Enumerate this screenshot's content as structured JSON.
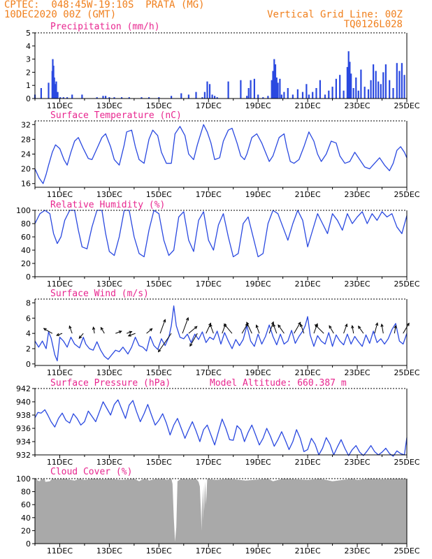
{
  "header": {
    "station": "CPTEC:  048:45W-19:10S  PRATA (MG)",
    "run": "10DEC2020 00Z (GMT)",
    "grid_note": "Vertical Grid Line: 00Z",
    "code": "TQ0126L028"
  },
  "colors": {
    "header": "#f07f1c",
    "title": "#e8268f",
    "line": "#2a49e0",
    "cloud": "#a9a9a9"
  },
  "x_ticks": [
    "11DEC",
    "13DEC",
    "15DEC",
    "17DEC",
    "19DEC",
    "21DEC",
    "23DEC",
    "25DEC"
  ],
  "chart_data": [
    {
      "type": "bar",
      "title": "Precipitation (mm/h)",
      "ylim": [
        0,
        5
      ],
      "yticks": [
        "0",
        "1",
        "2",
        "3",
        "4",
        "5"
      ],
      "x_start_day": 10,
      "x_end_day": 25,
      "x": [
        10.0,
        10.25,
        10.55,
        10.7,
        10.72,
        10.75,
        10.78,
        10.82,
        10.86,
        10.92,
        11.02,
        11.15,
        11.3,
        11.5,
        11.9,
        12.5,
        12.75,
        12.85,
        13.0,
        13.2,
        13.5,
        13.8,
        14.3,
        14.6,
        15.0,
        15.5,
        15.9,
        16.2,
        16.5,
        16.75,
        16.85,
        16.95,
        17.05,
        17.15,
        17.25,
        17.35,
        17.8,
        18.3,
        18.55,
        18.62,
        18.7,
        18.85,
        19.0,
        19.2,
        19.4,
        19.55,
        19.6,
        19.65,
        19.7,
        19.75,
        19.8,
        19.88,
        19.95,
        20.05,
        20.2,
        20.4,
        20.6,
        20.8,
        20.95,
        21.05,
        21.2,
        21.35,
        21.5,
        21.7,
        21.85,
        22.0,
        22.15,
        22.3,
        22.45,
        22.6,
        22.65,
        22.7,
        22.75,
        22.85,
        22.95,
        23.05,
        23.15,
        23.3,
        23.45,
        23.55,
        23.65,
        23.75,
        23.85,
        23.95,
        24.05,
        24.15,
        24.3,
        24.45,
        24.6,
        24.7,
        24.8,
        24.9
      ],
      "values": [
        0.3,
        0.8,
        1.2,
        2.1,
        3.0,
        2.5,
        1.6,
        1.1,
        1.3,
        0.5,
        0.1,
        0.1,
        0.1,
        0.3,
        0.3,
        0.1,
        0.2,
        0.2,
        0.1,
        0.1,
        0.1,
        0.1,
        0.1,
        0.1,
        0.1,
        0.2,
        0.4,
        0.3,
        0.5,
        0.1,
        0.5,
        1.3,
        1.1,
        0.3,
        0.2,
        0.1,
        1.3,
        1.4,
        0.2,
        0.8,
        1.4,
        1.5,
        0.3,
        0.1,
        0.2,
        1.4,
        2.1,
        3.0,
        2.6,
        1.6,
        1.2,
        1.5,
        0.3,
        0.5,
        0.8,
        0.3,
        0.7,
        0.5,
        1.1,
        0.3,
        0.5,
        0.8,
        1.4,
        0.3,
        0.6,
        0.9,
        1.5,
        1.8,
        0.6,
        2.4,
        3.6,
        2.8,
        1.9,
        0.8,
        1.6,
        0.6,
        2.2,
        0.9,
        0.7,
        1.4,
        2.6,
        2.1,
        1.3,
        1.1,
        2.0,
        2.6,
        1.4,
        0.8,
        2.7,
        2.1,
        2.7,
        1.8
      ]
    },
    {
      "type": "line",
      "title": "Surface Temperature (nC)",
      "ylim": [
        15,
        33
      ],
      "yticks": [
        "16",
        "20",
        "24",
        "28",
        "32"
      ],
      "x": [
        10.0,
        10.17,
        10.33,
        10.45,
        10.55,
        10.7,
        10.83,
        11.0,
        11.17,
        11.3,
        11.45,
        11.6,
        11.75,
        11.95,
        12.15,
        12.3,
        12.5,
        12.7,
        12.85,
        13.05,
        13.2,
        13.4,
        13.6,
        13.7,
        13.9,
        14.05,
        14.2,
        14.4,
        14.6,
        14.75,
        14.95,
        15.1,
        15.3,
        15.5,
        15.65,
        15.85,
        16.05,
        16.2,
        16.4,
        16.55,
        16.8,
        16.95,
        17.1,
        17.25,
        17.45,
        17.6,
        17.8,
        17.95,
        18.15,
        18.3,
        18.45,
        18.55,
        18.75,
        18.95,
        19.15,
        19.3,
        19.45,
        19.6,
        19.85,
        20.05,
        20.15,
        20.3,
        20.45,
        20.65,
        20.85,
        21.05,
        21.25,
        21.4,
        21.55,
        21.75,
        21.95,
        22.15,
        22.3,
        22.5,
        22.7,
        22.9,
        23.1,
        23.3,
        23.5,
        23.7,
        23.9,
        24.1,
        24.3,
        24.45,
        24.6,
        24.75,
        24.9,
        25.0
      ],
      "values": [
        20.0,
        17.5,
        16.0,
        18.5,
        21.0,
        24.5,
        26.5,
        25.5,
        22.5,
        21.0,
        24.5,
        27.5,
        28.5,
        25.5,
        22.8,
        22.5,
        25.5,
        28.5,
        29.5,
        26.0,
        22.5,
        21.0,
        26.5,
        30.0,
        30.5,
        26.0,
        22.5,
        21.5,
        28.0,
        30.5,
        29.0,
        24.5,
        21.5,
        21.5,
        29.5,
        31.5,
        29.0,
        24.0,
        22.5,
        26.5,
        32.0,
        30.0,
        27.0,
        22.5,
        23.0,
        27.5,
        30.5,
        31.0,
        27.0,
        23.5,
        22.5,
        24.0,
        28.5,
        29.5,
        27.0,
        24.5,
        22.0,
        23.5,
        28.5,
        29.5,
        26.0,
        22.0,
        21.5,
        22.5,
        26.0,
        30.0,
        27.5,
        24.0,
        22.0,
        24.0,
        27.5,
        27.0,
        23.5,
        21.5,
        22.0,
        24.5,
        22.5,
        20.5,
        20.0,
        21.5,
        23.0,
        21.0,
        19.5,
        21.5,
        25.0,
        26.0,
        24.5,
        23.0
      ]
    },
    {
      "type": "line",
      "title": "Relative Humidity (%)",
      "ylim": [
        0,
        100
      ],
      "yticks": [
        "0",
        "20",
        "40",
        "60",
        "80",
        "100"
      ],
      "x": [
        10.0,
        10.2,
        10.4,
        10.6,
        10.75,
        10.9,
        11.05,
        11.2,
        11.4,
        11.6,
        11.75,
        11.9,
        12.1,
        12.3,
        12.5,
        12.7,
        12.85,
        13.0,
        13.2,
        13.4,
        13.6,
        13.8,
        14.0,
        14.2,
        14.4,
        14.6,
        14.8,
        15.0,
        15.2,
        15.4,
        15.6,
        15.8,
        16.0,
        16.2,
        16.4,
        16.6,
        16.8,
        17.0,
        17.2,
        17.4,
        17.6,
        17.8,
        18.0,
        18.2,
        18.4,
        18.6,
        18.8,
        19.0,
        19.2,
        19.4,
        19.6,
        19.8,
        20.0,
        20.2,
        20.4,
        20.6,
        20.8,
        21.0,
        21.2,
        21.4,
        21.6,
        21.8,
        22.0,
        22.2,
        22.4,
        22.6,
        22.8,
        23.0,
        23.2,
        23.4,
        23.6,
        23.8,
        24.0,
        24.2,
        24.4,
        24.6,
        24.8,
        25.0
      ],
      "values": [
        80,
        95,
        100,
        95,
        65,
        50,
        60,
        85,
        100,
        100,
        70,
        45,
        42,
        75,
        100,
        100,
        65,
        38,
        32,
        60,
        100,
        100,
        60,
        35,
        30,
        70,
        100,
        95,
        55,
        32,
        40,
        90,
        98,
        55,
        38,
        85,
        98,
        55,
        40,
        78,
        95,
        60,
        30,
        35,
        80,
        90,
        60,
        30,
        35,
        80,
        100,
        95,
        75,
        55,
        80,
        100,
        85,
        45,
        70,
        95,
        80,
        65,
        95,
        85,
        70,
        95,
        80,
        90,
        98,
        80,
        95,
        85,
        98,
        90,
        95,
        75,
        65,
        92
      ]
    },
    {
      "type": "line",
      "title": "Surface Wind (m/s)",
      "ylim": [
        -0.2,
        8.5
      ],
      "yticks": [
        "0",
        "2",
        "4",
        "6",
        "8"
      ],
      "x": [
        10.0,
        10.15,
        10.3,
        10.45,
        10.55,
        10.65,
        10.8,
        10.9,
        11.0,
        11.15,
        11.3,
        11.45,
        11.6,
        11.8,
        11.95,
        12.05,
        12.2,
        12.35,
        12.5,
        12.65,
        12.8,
        12.95,
        13.1,
        13.25,
        13.4,
        13.55,
        13.75,
        13.9,
        14.05,
        14.2,
        14.35,
        14.5,
        14.65,
        14.8,
        14.95,
        15.1,
        15.25,
        15.4,
        15.5,
        15.6,
        15.7,
        15.85,
        16.0,
        16.15,
        16.3,
        16.45,
        16.6,
        16.75,
        16.9,
        17.05,
        17.2,
        17.35,
        17.5,
        17.65,
        17.8,
        17.95,
        18.1,
        18.25,
        18.4,
        18.55,
        18.7,
        18.85,
        19.0,
        19.15,
        19.3,
        19.45,
        19.6,
        19.75,
        19.9,
        20.05,
        20.2,
        20.35,
        20.5,
        20.65,
        20.8,
        20.9,
        21.0,
        21.1,
        21.25,
        21.4,
        21.55,
        21.7,
        21.85,
        22.0,
        22.15,
        22.3,
        22.45,
        22.6,
        22.75,
        22.9,
        23.05,
        23.2,
        23.35,
        23.5,
        23.65,
        23.8,
        23.95,
        24.1,
        24.25,
        24.4,
        24.55,
        24.7,
        24.85,
        25.0
      ],
      "values": [
        3.0,
        2.2,
        3.0,
        2.0,
        4.2,
        3.4,
        1.2,
        0.4,
        3.5,
        3.0,
        2.2,
        3.5,
        2.6,
        2.1,
        3.5,
        2.6,
        2.0,
        1.8,
        2.9,
        1.8,
        1.0,
        0.6,
        1.2,
        1.8,
        1.6,
        2.2,
        1.3,
        2.2,
        3.5,
        2.4,
        2.2,
        1.7,
        3.6,
        2.4,
        1.9,
        3.3,
        2.4,
        3.5,
        5.0,
        7.6,
        5.0,
        3.5,
        3.3,
        3.9,
        2.8,
        3.9,
        3.2,
        4.2,
        2.8,
        3.5,
        3.2,
        4.3,
        2.6,
        4.1,
        3.0,
        2.0,
        3.2,
        2.4,
        3.2,
        5.0,
        3.0,
        2.3,
        3.9,
        2.6,
        3.6,
        5.1,
        3.6,
        2.5,
        3.9,
        2.6,
        3.0,
        4.4,
        2.7,
        3.6,
        4.3,
        5.0,
        6.2,
        3.8,
        2.3,
        3.7,
        3.0,
        2.6,
        4.1,
        2.3,
        3.8,
        3.0,
        2.5,
        3.9,
        2.6,
        3.6,
        2.9,
        2.3,
        3.8,
        2.7,
        4.3,
        2.8,
        3.3,
        2.6,
        3.3,
        4.5,
        5.3,
        3.0,
        2.6,
        4.0
      ]
    },
    {
      "type": "line",
      "title": "Surface Pressure (hPa)",
      "annotation": "Model Altitude: 660.387 m",
      "ylim": [
        932,
        942
      ],
      "yticks": [
        "932",
        "934",
        "936",
        "938",
        "940",
        "942"
      ],
      "x": [
        10.0,
        10.12,
        10.25,
        10.4,
        10.52,
        10.65,
        10.8,
        10.95,
        11.1,
        11.25,
        11.4,
        11.55,
        11.7,
        11.85,
        12.0,
        12.15,
        12.3,
        12.45,
        12.6,
        12.75,
        12.9,
        13.05,
        13.2,
        13.35,
        13.5,
        13.65,
        13.8,
        13.95,
        14.1,
        14.25,
        14.4,
        14.55,
        14.7,
        14.85,
        15.0,
        15.15,
        15.3,
        15.45,
        15.6,
        15.75,
        15.9,
        16.05,
        16.2,
        16.35,
        16.5,
        16.65,
        16.8,
        16.95,
        17.1,
        17.25,
        17.4,
        17.55,
        17.7,
        17.85,
        18.0,
        18.15,
        18.3,
        18.45,
        18.6,
        18.75,
        18.9,
        19.05,
        19.2,
        19.35,
        19.5,
        19.65,
        19.8,
        19.95,
        20.1,
        20.25,
        20.4,
        20.55,
        20.7,
        20.85,
        21.0,
        21.15,
        21.3,
        21.45,
        21.6,
        21.75,
        21.9,
        22.05,
        22.2,
        22.35,
        22.5,
        22.65,
        22.8,
        22.95,
        23.1,
        23.25,
        23.4,
        23.55,
        23.7,
        23.85,
        24.0,
        24.15,
        24.3,
        24.45,
        24.6,
        24.75,
        24.9,
        25.0
      ],
      "values": [
        937.6,
        938.4,
        938.3,
        938.8,
        938.0,
        937.0,
        936.2,
        937.5,
        938.3,
        937.2,
        936.8,
        938.2,
        937.5,
        936.5,
        937.0,
        938.6,
        937.8,
        937.0,
        938.5,
        940.0,
        939.0,
        938.0,
        939.6,
        940.3,
        938.9,
        937.5,
        939.5,
        940.2,
        938.5,
        937.0,
        938.2,
        939.6,
        938.0,
        936.5,
        937.2,
        938.2,
        936.8,
        935.0,
        936.5,
        937.5,
        936.0,
        934.5,
        935.8,
        937.0,
        935.6,
        934.0,
        935.8,
        936.5,
        935.0,
        933.5,
        935.5,
        937.4,
        936.0,
        934.3,
        934.2,
        936.4,
        935.8,
        934.0,
        935.4,
        936.5,
        935.0,
        933.5,
        934.5,
        936.0,
        934.8,
        933.3,
        934.3,
        935.5,
        934.2,
        932.8,
        934.0,
        935.8,
        934.5,
        932.5,
        932.8,
        934.5,
        933.6,
        932.0,
        933.0,
        934.6,
        933.6,
        932.0,
        933.2,
        934.3,
        933.0,
        931.9,
        932.8,
        933.4,
        932.4,
        931.9,
        932.6,
        933.4,
        932.5,
        932.0,
        932.4,
        933.0,
        932.2,
        931.8,
        932.6,
        932.2,
        932.0,
        934.6
      ]
    },
    {
      "type": "area",
      "title": "Cloud Cover (%)",
      "ylim": [
        0,
        100
      ],
      "yticks": [
        "0",
        "20",
        "40",
        "60",
        "80",
        "100"
      ],
      "x": [
        10.0,
        10.08,
        10.1,
        10.2,
        10.25,
        10.4,
        10.42,
        10.6,
        10.7,
        10.9,
        11.2,
        11.6,
        11.8,
        12.0,
        12.3,
        12.8,
        13.0,
        13.5,
        14.0,
        14.2,
        14.4,
        14.55,
        14.6,
        14.9,
        15.0,
        15.2,
        15.3,
        15.5,
        15.55,
        15.6,
        15.65,
        15.7,
        15.75,
        15.9,
        16.2,
        16.5,
        16.6,
        16.65,
        16.7,
        16.72,
        16.75,
        16.78,
        16.8,
        16.83,
        16.86,
        16.9,
        16.95,
        17.3,
        17.8,
        18.5,
        19.4,
        19.6,
        20.0,
        20.6,
        21.0,
        21.5,
        22.0,
        22.8,
        23.0,
        23.5,
        24.0,
        24.5,
        25.0
      ],
      "values": [
        100,
        100,
        97,
        96,
        100,
        99,
        95,
        96,
        100,
        99,
        100,
        97,
        100,
        98,
        100,
        99,
        100,
        98,
        100,
        96,
        100,
        99,
        97,
        100,
        99,
        100,
        98,
        100,
        92,
        40,
        3,
        25,
        96,
        100,
        99,
        100,
        95,
        88,
        45,
        20,
        85,
        35,
        90,
        50,
        96,
        60,
        100,
        98,
        100,
        97,
        100,
        96,
        100,
        99,
        98,
        100,
        96,
        100,
        98,
        100,
        99,
        100,
        100
      ]
    }
  ],
  "wind_vectors": {
    "note": "arrow direction (degrees, 0=east, counterclockwise) and length (m/s)",
    "x": [
      10.7,
      11.1,
      11.5,
      11.95,
      12.4,
      12.8,
      13.25,
      13.7,
      14.05,
      14.5,
      15.05,
      15.5,
      15.95,
      16.2,
      16.55,
      16.9,
      17.2,
      17.55,
      17.95,
      18.35,
      18.75,
      19.05,
      19.45,
      19.75,
      20.05,
      20.45,
      20.85,
      21.25,
      21.65,
      22.05,
      22.45,
      22.85,
      23.25,
      23.7,
      24.05,
      24.5,
      24.85
    ],
    "dir": [
      150,
      200,
      110,
      230,
      100,
      120,
      20,
      20,
      200,
      40,
      70,
      235,
      70,
      40,
      240,
      65,
      110,
      70,
      130,
      60,
      115,
      110,
      70,
      110,
      125,
      60,
      110,
      70,
      135,
      120,
      70,
      100,
      125,
      75,
      100,
      80,
      60
    ],
    "len": [
      2.0,
      1.2,
      1.6,
      1.3,
      1.3,
      1.4,
      1.3,
      1.1,
      1.5,
      1.5,
      3.0,
      4.6,
      3.4,
      2.2,
      3.0,
      2.3,
      2.0,
      2.0,
      2.5,
      2.3,
      2.5,
      1.8,
      2.5,
      2.0,
      2.1,
      2.6,
      2.0,
      2.1,
      2.5,
      1.8,
      2.0,
      1.6,
      1.8,
      2.2,
      1.9,
      1.6,
      2.4
    ]
  }
}
